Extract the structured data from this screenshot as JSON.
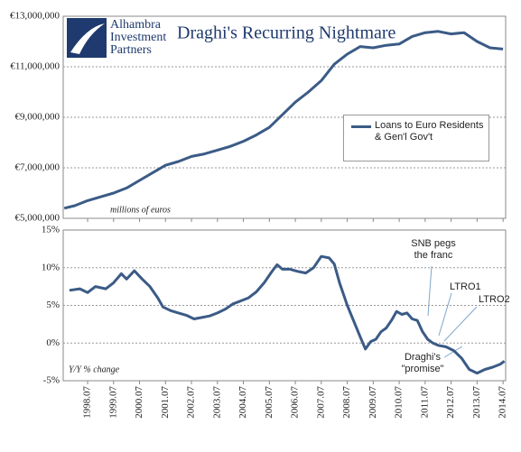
{
  "logo": {
    "lines": [
      "Alhambra",
      "Investment",
      "Partners"
    ]
  },
  "chart_data": [
    {
      "type": "line",
      "title": "Draghi's Recurring Nightmare",
      "y_label": "millions of euros",
      "xlim": [
        1997.56,
        2014.6
      ],
      "ylim": [
        5000000,
        13000000
      ],
      "yticks": [
        {
          "value": 5000000,
          "label": "€5,000,000"
        },
        {
          "value": 7000000,
          "label": "€7,000,000"
        },
        {
          "value": 9000000,
          "label": "€9,000,000"
        },
        {
          "value": 11000000,
          "label": "€11,000,000"
        },
        {
          "value": 13000000,
          "label": "€13,000,000"
        }
      ],
      "grid": true,
      "legend": "right",
      "x": [
        1997.6,
        1998.0,
        1998.5,
        1999.0,
        1999.5,
        2000.0,
        2000.5,
        2001.0,
        2001.5,
        2002.0,
        2002.5,
        2003.0,
        2003.5,
        2004.0,
        2004.5,
        2005.0,
        2005.5,
        2006.0,
        2006.5,
        2007.0,
        2007.5,
        2008.0,
        2008.5,
        2009.0,
        2009.5,
        2010.0,
        2010.5,
        2011.0,
        2011.5,
        2012.0,
        2012.5,
        2013.0,
        2013.5,
        2014.0,
        2014.5
      ],
      "series": [
        {
          "name": "Loans to Euro Residents & Gen'l Gov't",
          "color": "#3b5b86",
          "values": [
            5400000,
            5500000,
            5700000,
            5850000,
            6000000,
            6200000,
            6500000,
            6800000,
            7100000,
            7250000,
            7450000,
            7550000,
            7700000,
            7850000,
            8050000,
            8300000,
            8600000,
            9100000,
            9600000,
            10000000,
            10450000,
            11100000,
            11500000,
            11800000,
            11750000,
            11850000,
            11900000,
            12200000,
            12350000,
            12400000,
            12300000,
            12350000,
            12000000,
            11750000,
            11700000
          ]
        }
      ]
    },
    {
      "type": "line",
      "y_label": "Y/Y % change",
      "xlim": [
        1997.56,
        2014.6
      ],
      "ylim": [
        -5,
        15
      ],
      "yticks": [
        {
          "value": -5,
          "label": "-5%"
        },
        {
          "value": 0,
          "label": "0%"
        },
        {
          "value": 5,
          "label": "5%"
        },
        {
          "value": 10,
          "label": "10%"
        },
        {
          "value": 15,
          "label": "15%"
        }
      ],
      "xticks": [
        {
          "value": 1998.5,
          "label": "1998.07"
        },
        {
          "value": 1999.5,
          "label": "1999.07"
        },
        {
          "value": 2000.5,
          "label": "2000.07"
        },
        {
          "value": 2001.5,
          "label": "2001.07"
        },
        {
          "value": 2002.5,
          "label": "2002.07"
        },
        {
          "value": 2003.5,
          "label": "2003.07"
        },
        {
          "value": 2004.5,
          "label": "2004.07"
        },
        {
          "value": 2005.5,
          "label": "2005.07"
        },
        {
          "value": 2006.5,
          "label": "2006.07"
        },
        {
          "value": 2007.5,
          "label": "2007.07"
        },
        {
          "value": 2008.5,
          "label": "2008.07"
        },
        {
          "value": 2009.5,
          "label": "2009.07"
        },
        {
          "value": 2010.5,
          "label": "2010.07"
        },
        {
          "value": 2011.5,
          "label": "2011.07"
        },
        {
          "value": 2012.5,
          "label": "2012.07"
        },
        {
          "value": 2013.5,
          "label": "2013.07"
        },
        {
          "value": 2014.5,
          "label": "2014.07"
        }
      ],
      "grid": true,
      "annotations": [
        "SNB pegs the franc",
        "LTRO1",
        "LTRO2",
        "Draghi's \"promise\""
      ],
      "x": [
        1997.8,
        1998.2,
        1998.5,
        1998.8,
        1999.2,
        1999.5,
        1999.8,
        2000.0,
        2000.3,
        2000.6,
        2000.9,
        2001.2,
        2001.4,
        2001.7,
        2002.0,
        2002.3,
        2002.6,
        2002.9,
        2003.2,
        2003.5,
        2003.8,
        2004.1,
        2004.4,
        2004.7,
        2005.0,
        2005.3,
        2005.6,
        2005.8,
        2006.0,
        2006.3,
        2006.6,
        2006.9,
        2007.2,
        2007.5,
        2007.8,
        2008.0,
        2008.2,
        2008.5,
        2008.8,
        2009.0,
        2009.2,
        2009.4,
        2009.6,
        2009.8,
        2010.0,
        2010.2,
        2010.4,
        2010.6,
        2010.8,
        2011.0,
        2011.2,
        2011.4,
        2011.6,
        2011.8,
        2012.0,
        2012.3,
        2012.6,
        2012.9,
        2013.2,
        2013.5,
        2013.8,
        2014.1,
        2014.4,
        2014.55
      ],
      "series": [
        {
          "name": "Y/Y",
          "color": "#3b5b86",
          "values": [
            7.0,
            7.2,
            6.7,
            7.5,
            7.2,
            8.0,
            9.2,
            8.5,
            9.6,
            8.5,
            7.5,
            6.0,
            4.8,
            4.3,
            4.0,
            3.7,
            3.2,
            3.4,
            3.6,
            4.0,
            4.5,
            5.2,
            5.6,
            6.0,
            6.8,
            8.0,
            9.5,
            10.4,
            9.8,
            9.8,
            9.5,
            9.3,
            10.0,
            11.5,
            11.3,
            10.5,
            8.0,
            5.0,
            2.5,
            0.8,
            -0.8,
            0.2,
            0.5,
            1.5,
            2.0,
            3.0,
            4.2,
            3.8,
            4.0,
            3.2,
            3.0,
            1.5,
            0.5,
            0.0,
            -0.3,
            -0.5,
            -1.0,
            -2.0,
            -3.5,
            -4.0,
            -3.5,
            -3.2,
            -2.8,
            -2.4
          ]
        }
      ]
    }
  ]
}
